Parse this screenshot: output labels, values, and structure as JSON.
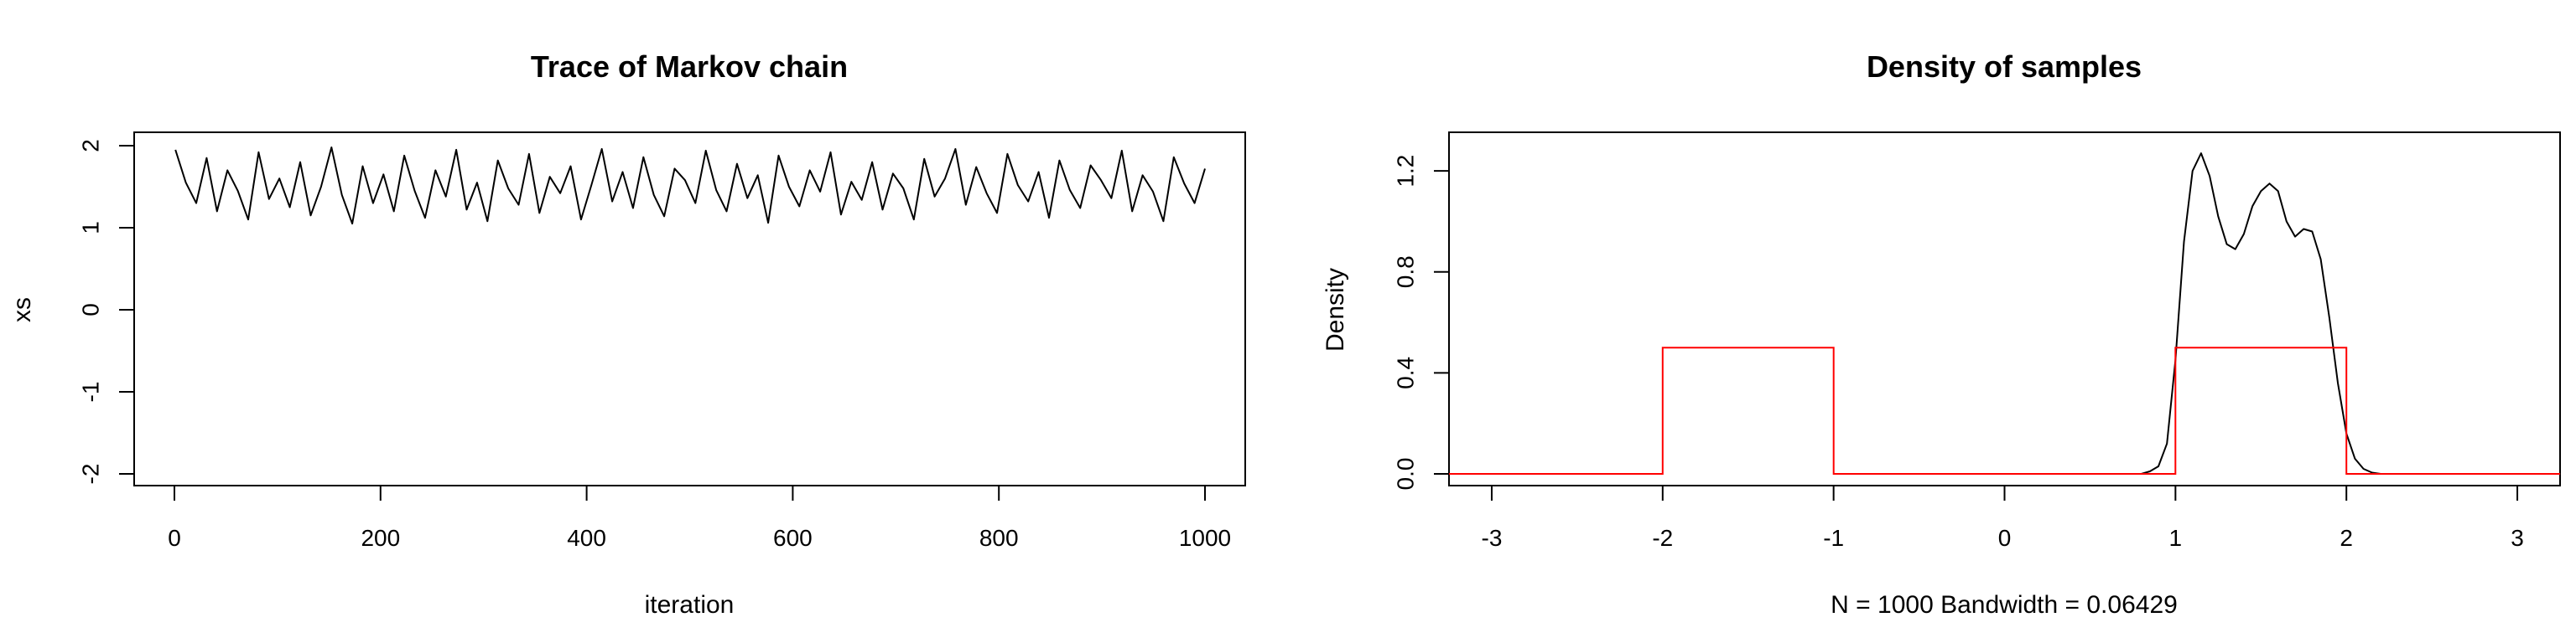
{
  "chart_data": [
    {
      "type": "line",
      "title": "Trace of Markov chain",
      "xlabel": "iteration",
      "ylabel": "xs",
      "xlim": [
        0,
        1000
      ],
      "ylim": [
        -2,
        2
      ],
      "x_ticks": [
        0,
        200,
        400,
        600,
        800,
        1000
      ],
      "y_ticks": [
        -2,
        -1,
        0,
        1,
        2
      ],
      "grid": false,
      "legend": "none",
      "series": [
        {
          "color": "#000000",
          "x_range": [
            1,
            1000
          ],
          "y_range": [
            1.0,
            2.0
          ],
          "values": [
            1.95,
            1.55,
            1.3,
            1.85,
            1.2,
            1.7,
            1.45,
            1.1,
            1.92,
            1.35,
            1.6,
            1.25,
            1.8,
            1.15,
            1.5,
            1.98,
            1.4,
            1.05,
            1.75,
            1.3,
            1.65,
            1.2,
            1.88,
            1.45,
            1.12,
            1.7,
            1.38,
            1.95,
            1.22,
            1.55,
            1.08,
            1.82,
            1.48,
            1.28,
            1.9,
            1.18,
            1.62,
            1.42,
            1.75,
            1.1,
            1.52,
            1.96,
            1.32,
            1.68,
            1.24,
            1.86,
            1.4,
            1.14,
            1.72,
            1.58,
            1.3,
            1.94,
            1.46,
            1.2,
            1.78,
            1.36,
            1.64,
            1.06,
            1.88,
            1.5,
            1.26,
            1.7,
            1.44,
            1.92,
            1.16,
            1.56,
            1.34,
            1.8,
            1.22,
            1.66,
            1.48,
            1.1,
            1.84,
            1.38,
            1.6,
            1.96,
            1.28,
            1.74,
            1.42,
            1.18,
            1.9,
            1.52,
            1.32,
            1.68,
            1.12,
            1.82,
            1.46,
            1.24,
            1.76,
            1.58,
            1.36,
            1.94,
            1.2,
            1.64,
            1.44,
            1.08,
            1.86,
            1.54,
            1.3,
            1.72
          ]
        }
      ]
    },
    {
      "type": "line",
      "title": "Density of samples",
      "xlabel": "N = 1000   Bandwidth = 0.06429",
      "ylabel": "Density",
      "xlim": [
        -3.25,
        3.25
      ],
      "ylim": [
        0,
        1.3
      ],
      "x_ticks": [
        -3,
        -2,
        -1,
        0,
        1,
        2,
        3
      ],
      "y_ticks": [
        0.0,
        0.4,
        0.8,
        1.2
      ],
      "y_tick_labels": [
        "0.0",
        "0.4",
        "0.8",
        "1.2"
      ],
      "grid": false,
      "legend": "none",
      "series": [
        {
          "color": "#000000",
          "x": [
            0.8,
            0.85,
            0.9,
            0.95,
            1.0,
            1.05,
            1.1,
            1.15,
            1.2,
            1.25,
            1.3,
            1.35,
            1.4,
            1.45,
            1.5,
            1.55,
            1.6,
            1.65,
            1.7,
            1.75,
            1.8,
            1.85,
            1.9,
            1.95,
            2.0,
            2.05,
            2.1,
            2.15,
            2.2
          ],
          "y": [
            0.0,
            0.01,
            0.03,
            0.12,
            0.45,
            0.92,
            1.2,
            1.27,
            1.18,
            1.02,
            0.91,
            0.89,
            0.95,
            1.06,
            1.12,
            1.15,
            1.12,
            1.0,
            0.94,
            0.97,
            0.96,
            0.85,
            0.62,
            0.36,
            0.16,
            0.06,
            0.02,
            0.005,
            0.0
          ]
        },
        {
          "color": "#ff0000",
          "step": true,
          "x": [
            -3.25,
            -2,
            -2,
            -1,
            -1,
            1,
            1,
            2,
            2,
            3.25
          ],
          "y": [
            0,
            0,
            0.5,
            0.5,
            0,
            0,
            0.5,
            0.5,
            0,
            0
          ]
        }
      ]
    }
  ]
}
